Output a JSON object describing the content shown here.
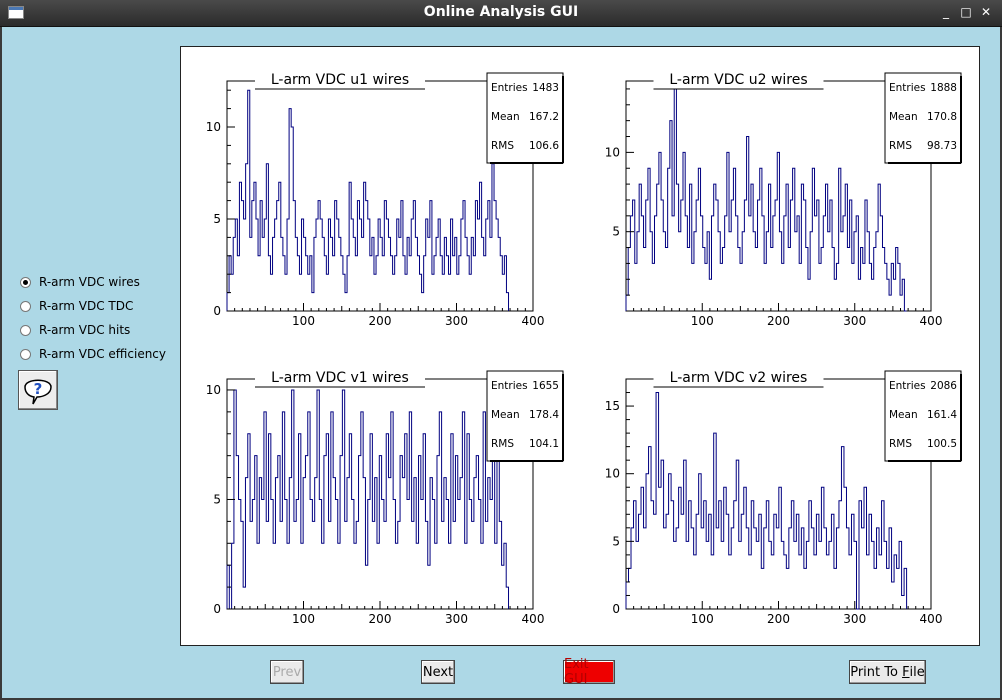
{
  "window": {
    "title": "Online Analysis GUI"
  },
  "radio_options": [
    {
      "label": "R-arm VDC wires",
      "checked": true
    },
    {
      "label": "R-arm VDC TDC",
      "checked": false
    },
    {
      "label": "R-arm VDC hits",
      "checked": false
    },
    {
      "label": "R-arm VDC efficiency",
      "checked": false
    }
  ],
  "buttons": {
    "prev": "Prev",
    "next": "Next",
    "exit": "Exit GUI",
    "print_prefix": "Print To ",
    "print_underlined": "F",
    "print_suffix": "ile"
  },
  "chart_data": [
    {
      "type": "bar",
      "title": "L-arm VDC u1 wires",
      "stats": {
        "labels": [
          "Entries",
          "Mean",
          "RMS"
        ],
        "values": [
          "1483",
          "167.2",
          "106.6"
        ]
      },
      "xlim": [
        0,
        400
      ],
      "xticks": [
        "100",
        "200",
        "300",
        "400"
      ],
      "ylim": [
        0,
        12.5
      ],
      "yticks": [
        "0",
        "5",
        "10"
      ],
      "x_range_filled": [
        0,
        368
      ],
      "values": [
        1,
        3,
        2,
        4,
        5,
        3,
        7,
        6,
        5,
        8,
        12,
        4,
        6,
        7,
        5,
        3,
        6,
        4,
        5,
        8,
        3,
        2,
        4,
        5,
        6,
        7,
        4,
        3,
        2,
        5,
        11,
        10,
        6,
        4,
        3,
        2,
        5,
        4,
        3,
        2,
        3,
        1,
        4,
        5,
        6,
        5,
        4,
        3,
        2,
        5,
        4,
        3,
        6,
        5,
        4,
        3,
        2,
        1,
        3,
        7,
        5,
        4,
        3,
        6,
        5,
        4,
        7,
        6,
        5,
        3,
        4,
        2,
        3,
        5,
        4,
        3,
        6,
        5,
        4,
        3,
        2,
        3,
        5,
        4,
        6,
        3,
        2,
        4,
        3,
        5,
        6,
        4,
        3,
        2,
        1,
        3,
        5,
        4,
        6,
        2,
        3,
        4,
        5,
        3,
        2,
        4,
        3,
        2,
        5,
        3,
        4,
        2,
        3,
        5,
        6,
        4,
        3,
        2,
        4,
        3,
        6,
        5,
        7,
        4,
        3,
        5,
        6,
        4,
        8,
        6,
        5,
        4,
        3,
        2,
        3,
        1
      ],
      "series_color": "#000080"
    },
    {
      "type": "bar",
      "title": "L-arm VDC u2 wires",
      "stats": {
        "labels": [
          "Entries",
          "Mean",
          "RMS"
        ],
        "values": [
          "1888",
          "170.8",
          "98.73"
        ]
      },
      "xlim": [
        0,
        400
      ],
      "xticks": [
        "100",
        "200",
        "300",
        "400"
      ],
      "ylim": [
        0,
        14.5
      ],
      "yticks": [
        "5",
        "10"
      ],
      "x_range_filled": [
        0,
        368
      ],
      "values": [
        1,
        4,
        6,
        7,
        3,
        5,
        8,
        6,
        4,
        7,
        9,
        5,
        3,
        6,
        8,
        10,
        7,
        5,
        4,
        9,
        12,
        6,
        14,
        8,
        5,
        7,
        10,
        6,
        4,
        8,
        3,
        5,
        7,
        9,
        6,
        4,
        3,
        5,
        2,
        6,
        8,
        7,
        5,
        3,
        4,
        6,
        10,
        5,
        7,
        9,
        6,
        4,
        3,
        5,
        7,
        11,
        6,
        8,
        5,
        4,
        7,
        9,
        6,
        3,
        5,
        8,
        4,
        6,
        7,
        10,
        5,
        3,
        6,
        8,
        4,
        7,
        9,
        5,
        6,
        3,
        8,
        7,
        4,
        2,
        5,
        9,
        6,
        7,
        3,
        4,
        6,
        8,
        5,
        7,
        4,
        2,
        3,
        9,
        5,
        6,
        8,
        4,
        7,
        3,
        5,
        6,
        2,
        4,
        3,
        7,
        5,
        3,
        2,
        4,
        5,
        8,
        6,
        4,
        3,
        2,
        1,
        3,
        2,
        4,
        3,
        1,
        2,
        0
      ],
      "series_color": "#000080"
    },
    {
      "type": "bar",
      "title": "L-arm VDC v1 wires",
      "stats": {
        "labels": [
          "Entries",
          "Mean",
          "RMS"
        ],
        "values": [
          "1655",
          "178.4",
          "104.1"
        ]
      },
      "xlim": [
        0,
        400
      ],
      "xticks": [
        "100",
        "200",
        "300",
        "400"
      ],
      "ylim": [
        0,
        10.5
      ],
      "yticks": [
        "0",
        "5",
        "10"
      ],
      "x_range_filled": [
        0,
        368
      ],
      "values": [
        2,
        0,
        3,
        10,
        7,
        5,
        4,
        1,
        6,
        8,
        4,
        5,
        7,
        3,
        6,
        5,
        9,
        4,
        8,
        5,
        3,
        6,
        7,
        4,
        9,
        5,
        3,
        6,
        10,
        4,
        5,
        8,
        3,
        6,
        7,
        9,
        5,
        4,
        6,
        10,
        5,
        3,
        7,
        8,
        4,
        9,
        6,
        5,
        3,
        7,
        10,
        4,
        6,
        8,
        5,
        3,
        4,
        7,
        9,
        6,
        2,
        5,
        8,
        4,
        6,
        3,
        7,
        5,
        4,
        8,
        6,
        9,
        5,
        3,
        4,
        7,
        6,
        8,
        5,
        9,
        4,
        6,
        3,
        7,
        5,
        8,
        4,
        2,
        6,
        5,
        3,
        7,
        9,
        4,
        6,
        5,
        3,
        8,
        4,
        7,
        5,
        6,
        9,
        3,
        8,
        5,
        4,
        6,
        7,
        5,
        3,
        9,
        4,
        6,
        5,
        8,
        3,
        7,
        4,
        2,
        3,
        1
      ],
      "series_color": "#000080"
    },
    {
      "type": "bar",
      "title": "L-arm VDC v2 wires",
      "stats": {
        "labels": [
          "Entries",
          "Mean",
          "RMS"
        ],
        "values": [
          "2086",
          "161.4",
          "100.5"
        ]
      },
      "xlim": [
        0,
        400
      ],
      "xticks": [
        "100",
        "200",
        "300",
        "400"
      ],
      "ylim": [
        0,
        17
      ],
      "yticks": [
        "0",
        "5",
        "10",
        "15"
      ],
      "x_range_filled": [
        0,
        368
      ],
      "values": [
        2,
        3,
        6,
        8,
        5,
        7,
        9,
        6,
        10,
        12,
        8,
        7,
        16,
        9,
        11,
        6,
        7,
        10,
        8,
        5,
        6,
        9,
        7,
        11,
        5,
        8,
        6,
        4,
        7,
        10,
        6,
        8,
        5,
        7,
        4,
        13,
        6,
        8,
        5,
        9,
        7,
        4,
        6,
        8,
        11,
        5,
        7,
        9,
        6,
        4,
        8,
        6,
        5,
        7,
        3,
        6,
        8,
        5,
        4,
        7,
        6,
        9,
        5,
        4,
        3,
        6,
        8,
        5,
        7,
        4,
        6,
        3,
        5,
        8,
        6,
        4,
        7,
        5,
        9,
        6,
        4,
        5,
        7,
        3,
        6,
        8,
        12,
        9,
        6,
        4,
        7,
        5,
        0,
        8,
        6,
        9,
        4,
        7,
        5,
        3,
        6,
        4,
        8,
        5,
        3,
        6,
        2,
        4,
        3,
        5,
        1,
        3
      ],
      "series_color": "#000080"
    }
  ]
}
